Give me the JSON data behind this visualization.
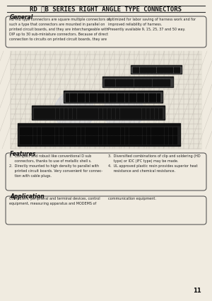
{
  "bg_color": "#f0ebe0",
  "title": "RD ⁂B SERIES RIGHT ANGLE TYPE CONNECTORS",
  "page_number": "11",
  "general_heading": "General",
  "general_text_left": "RD ⁂B type connectors are square multiple connectors of\nsuch a type that connectors are mounted in parallel on\nprinted circuit boards, and they are interchangeable with\nDIP up to 30 sub-miniature connectors. Because of direct\nconnection to circuits on printed circuit boards, they are",
  "general_text_right": "optimized for labor saving of harness work and for\nimproved reliability of harness.\nPresently available 9, 15, 25, 37 and 50 way.",
  "features_heading": "Features",
  "features_text_left": "1.  Compact and robust like conventional D sub\n     connectors, thanks to use of metallic shell s.\n2.  Directly mounted to high density to parallel with\n     printed circuit boards. Very convenient for connec-\n     tion with cable plugs.",
  "features_text_right": "3.  Diversified combinations of clip and soldering (HD\n     type) or IDC (IFC type) may be made.\n4.  UL approved plastic resin provides superior heat\n     resistance and chemical resistance.",
  "application_heading": "Application",
  "application_text": "Computers, peripheral and terminal devices, control\nequipment, measuring apparatus and MODEMS of",
  "application_text_right": "communication equipment."
}
